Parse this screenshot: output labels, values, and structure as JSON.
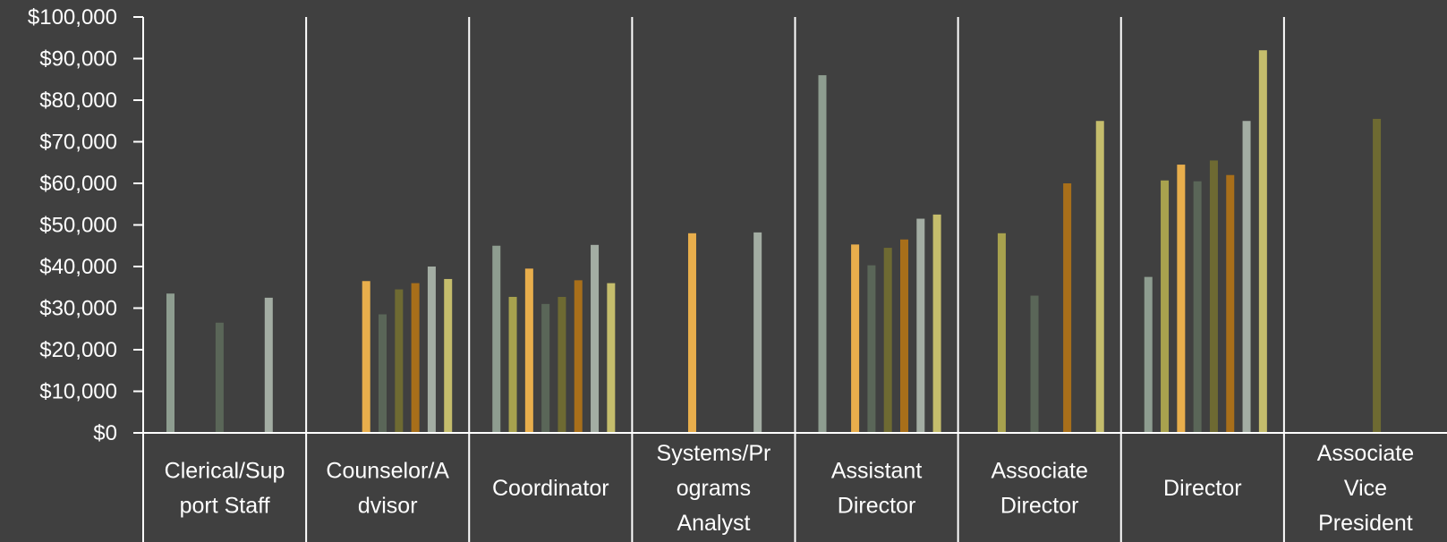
{
  "chart_data": {
    "type": "bar",
    "title": "",
    "xlabel": "",
    "ylabel": "",
    "ylim": [
      0,
      100000
    ],
    "yticks": [
      0,
      10000,
      20000,
      30000,
      40000,
      50000,
      60000,
      70000,
      80000,
      90000,
      100000
    ],
    "ytick_labels": [
      "$0",
      "$10,000",
      "$20,000",
      "$30,000",
      "$40,000",
      "$50,000",
      "$60,000",
      "$70,000",
      "$80,000",
      "$90,000",
      "$100,000"
    ],
    "grid": false,
    "legend": "none",
    "series_colors": [
      "#8e9d90",
      "#a8a24e",
      "#e8ae4c",
      "#5a6658",
      "#6e6a32",
      "#a86f1a",
      "#a3ada3",
      "#c5bd6c"
    ],
    "categories": [
      {
        "label": [
          "Clerical/Sup",
          "port Staff"
        ],
        "values": [
          33500,
          null,
          null,
          26500,
          null,
          null,
          32500,
          null
        ]
      },
      {
        "label": [
          "Counselor/A",
          "dvisor"
        ],
        "values": [
          null,
          null,
          36500,
          28500,
          34500,
          36000,
          40000,
          37000
        ]
      },
      {
        "label": [
          "Coordinator"
        ],
        "values": [
          45000,
          32700,
          39500,
          31000,
          32700,
          36700,
          45200,
          36000
        ]
      },
      {
        "label": [
          "Systems/Pr",
          "ograms",
          "Analyst"
        ],
        "values": [
          null,
          null,
          48000,
          null,
          null,
          null,
          48200,
          null
        ]
      },
      {
        "label": [
          "Assistant",
          "Director"
        ],
        "values": [
          86000,
          null,
          45300,
          40300,
          44500,
          46500,
          51500,
          52500
        ]
      },
      {
        "label": [
          "Associate",
          "Director"
        ],
        "values": [
          null,
          48000,
          null,
          33000,
          null,
          60000,
          null,
          75000
        ]
      },
      {
        "label": [
          "Director"
        ],
        "values": [
          37500,
          60700,
          64500,
          60500,
          65500,
          62000,
          75000,
          92000
        ]
      },
      {
        "label": [
          "Associate",
          "Vice",
          "President"
        ],
        "values": [
          null,
          null,
          null,
          null,
          75500,
          null,
          null,
          null
        ]
      }
    ]
  }
}
